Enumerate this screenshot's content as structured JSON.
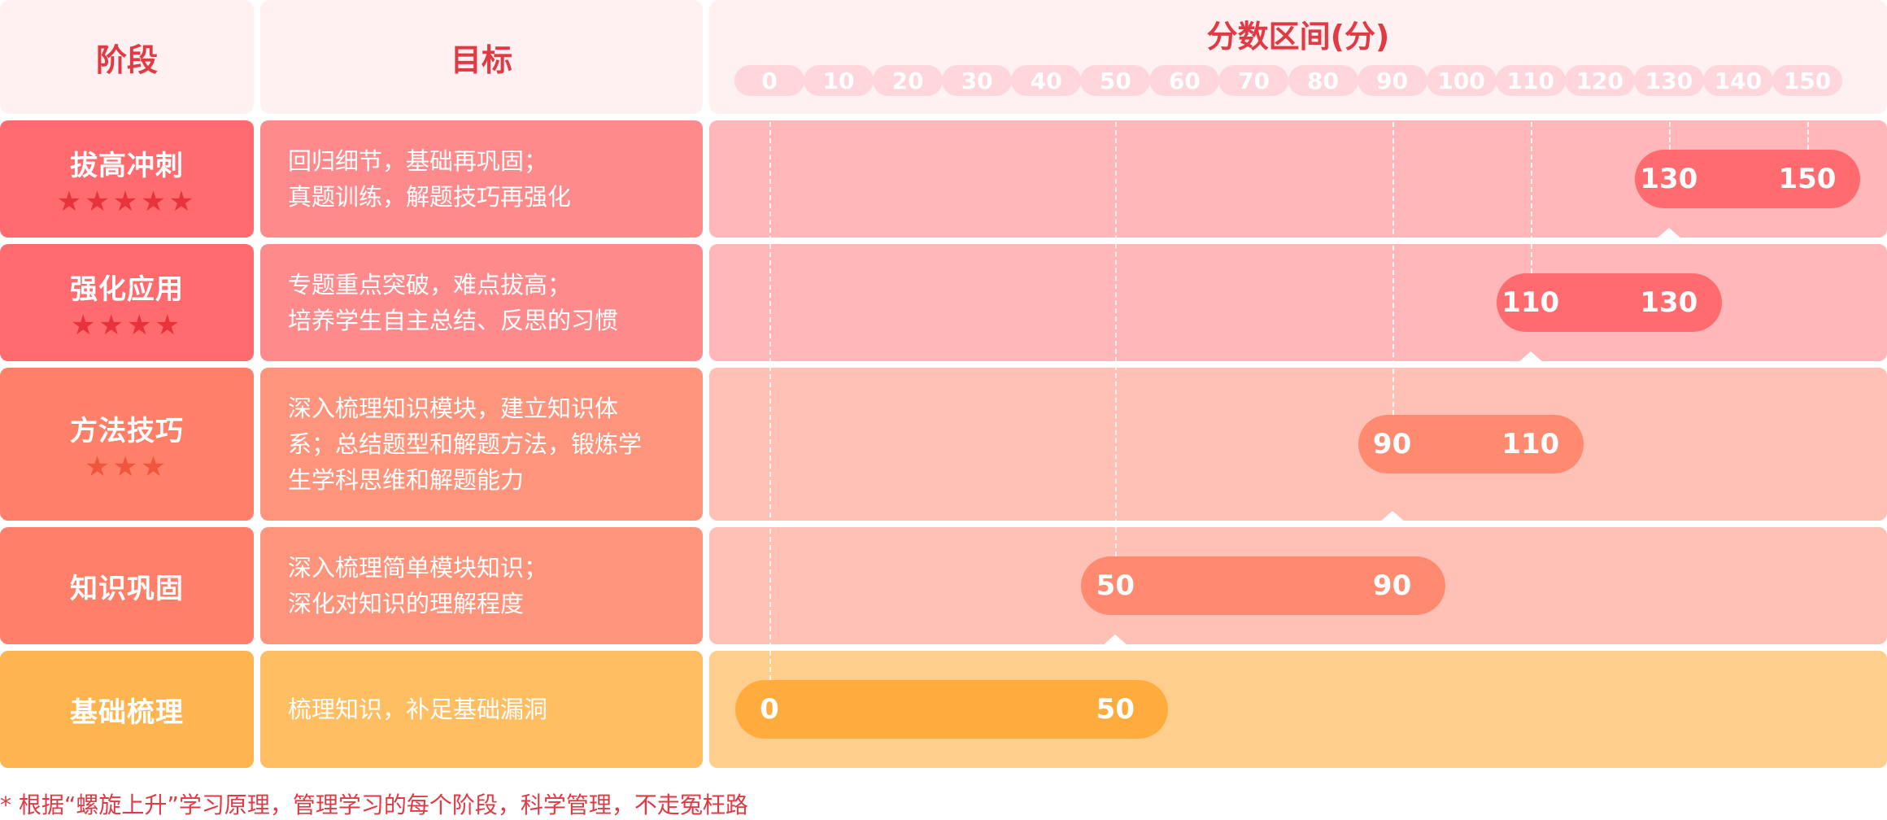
{
  "headers": {
    "stage": "阶段",
    "goal": "目标",
    "range_title": "分数区间(分)"
  },
  "chart_data": {
    "type": "bar",
    "orientation": "horizontal-range",
    "title": "分数区间(分)",
    "x_ticks": [
      0,
      10,
      20,
      30,
      40,
      50,
      60,
      70,
      80,
      90,
      100,
      110,
      120,
      130,
      140,
      150
    ],
    "xlim": [
      0,
      150
    ],
    "gridlines_at": [
      0,
      50,
      90,
      110,
      130,
      150
    ],
    "stages": [
      {
        "name": "拔高冲刺",
        "stars": 5,
        "goal": "回归细节，基础再巩固；\n真题训练，解题技巧再强化",
        "start": 130,
        "end": 150,
        "cell_color": "#ff6b6f",
        "goal_color": "#ff8a8c",
        "row_color": "#ffb7ba",
        "bar_color": "#ff6b6f"
      },
      {
        "name": "强化应用",
        "stars": 4,
        "goal": "专题重点突破，难点拔高；\n培养学生自主总结、反思的习惯",
        "start": 110,
        "end": 130,
        "cell_color": "#ff6b6f",
        "goal_color": "#ff8a8c",
        "row_color": "#ffb7ba",
        "bar_color": "#ff6b6f"
      },
      {
        "name": "方法技巧",
        "stars": 3,
        "goal": "深入梳理知识模块，建立知识体\n系；总结题型和解题方法，锻炼学\n生学科思维和解题能力",
        "start": 90,
        "end": 110,
        "cell_color": "#ff7f68",
        "goal_color": "#ff947c",
        "row_color": "#ffc0b5",
        "bar_color": "#ff8a70"
      },
      {
        "name": "知识巩固",
        "stars": 0,
        "goal": "深入梳理简单模块知识；\n深化对知识的理解程度",
        "start": 50,
        "end": 90,
        "cell_color": "#ff7f68",
        "goal_color": "#ff947c",
        "row_color": "#ffc0b5",
        "bar_color": "#ff8a70"
      },
      {
        "name": "基础梳理",
        "stars": 0,
        "goal": "梳理知识，补足基础漏洞",
        "start": 0,
        "end": 50,
        "cell_color": "#ffb54f",
        "goal_color": "#ffbe62",
        "row_color": "#ffcd8c",
        "bar_color": "#ffab3e"
      }
    ]
  },
  "footnote": "* 根据“螺旋上升”学习原理，管理学习的每个阶段，科学管理，不走冤枉路",
  "colors": {
    "accent_red": "#e03a44",
    "header_bg": "#fff0f2",
    "tick_bg": "#ffd6dc",
    "star_red": "#e8333d",
    "star_orange": "#f0553e"
  }
}
